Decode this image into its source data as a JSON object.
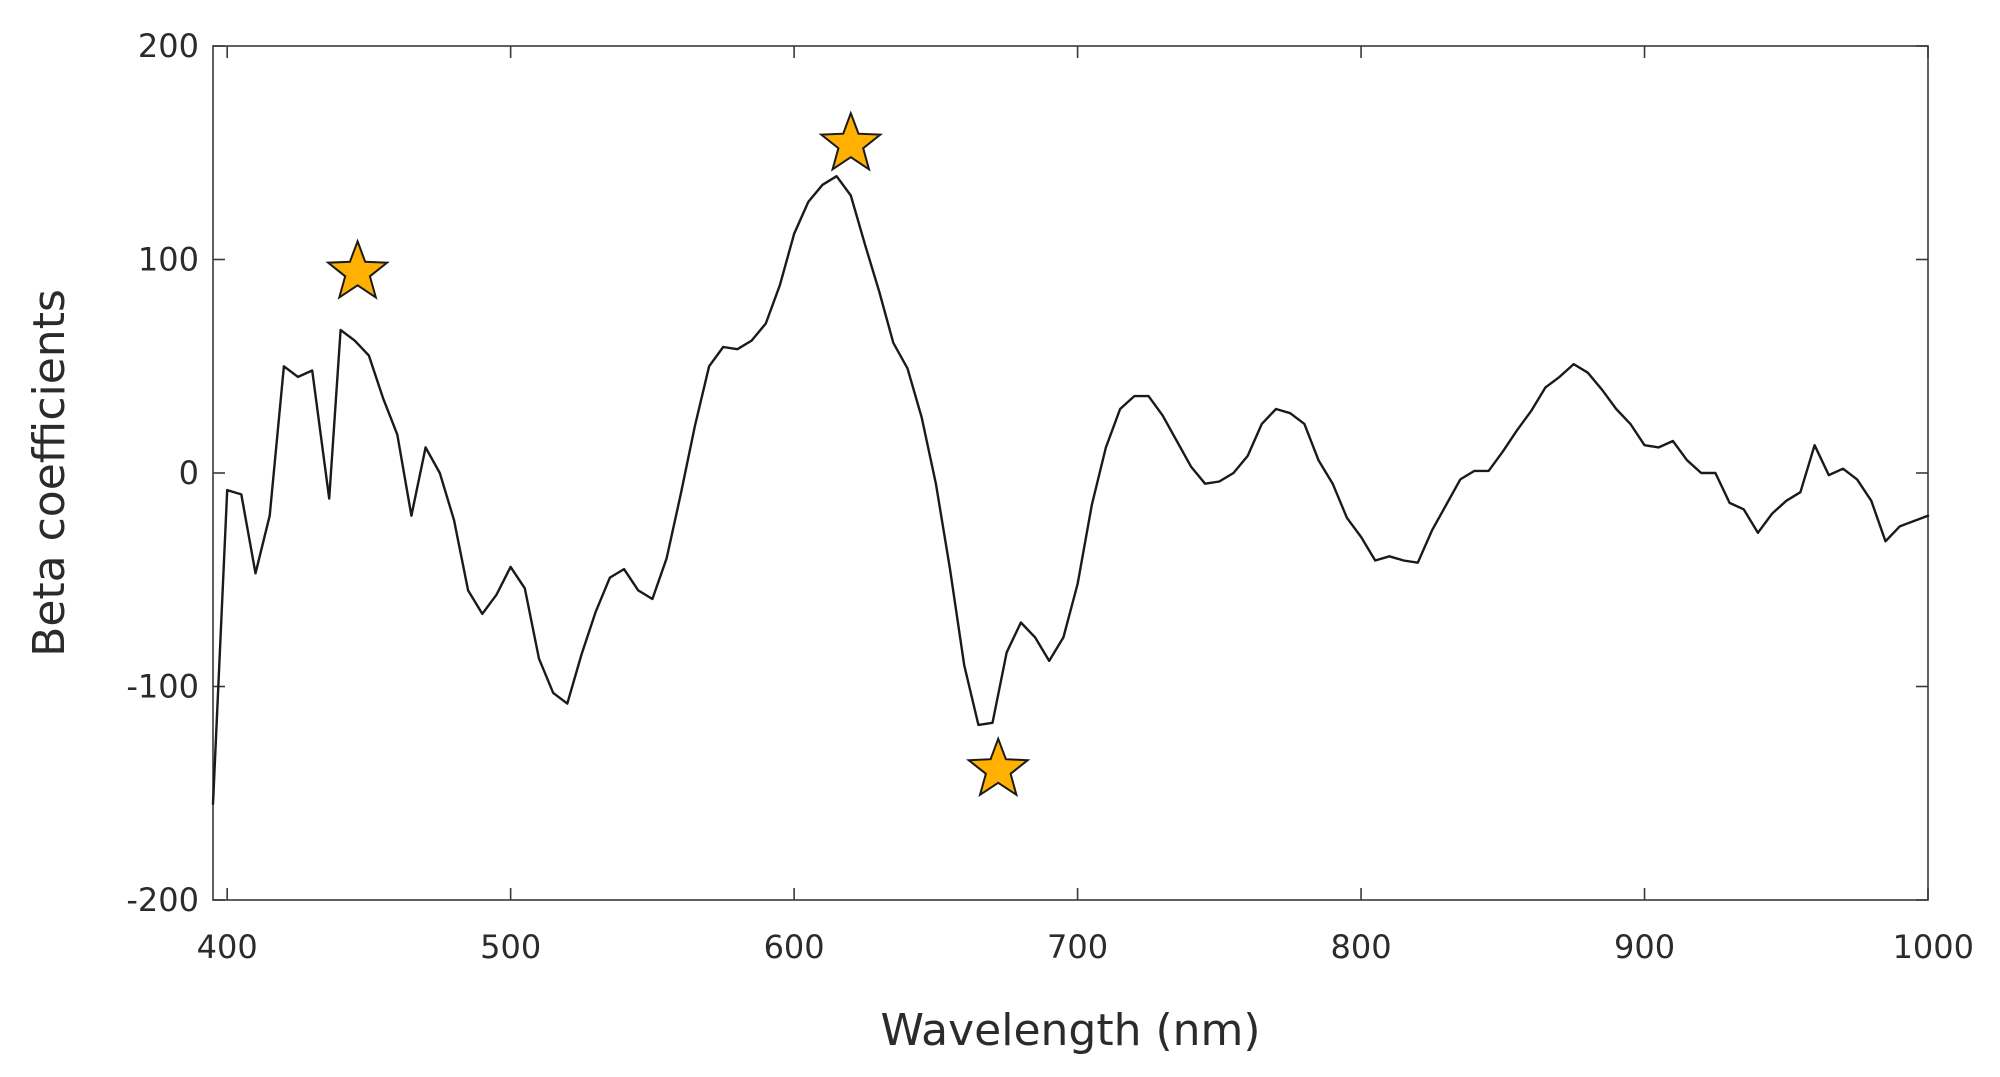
{
  "chart_data": {
    "type": "line",
    "title": "",
    "xlabel": "Wavelength (nm)",
    "ylabel": "Beta coefficients",
    "xlim": [
      395,
      1000
    ],
    "ylim": [
      -200,
      200
    ],
    "xticks": [
      400,
      500,
      600,
      700,
      800,
      900,
      1000
    ],
    "yticks": [
      -200,
      -100,
      0,
      100,
      200
    ],
    "grid": false,
    "line_color": "#1a1a1a",
    "marker_color": "#FFB000",
    "series": [
      {
        "values": [
          [
            395,
            -155
          ],
          [
            400,
            -8
          ],
          [
            405,
            -10
          ],
          [
            410,
            -47
          ],
          [
            415,
            -20
          ],
          [
            420,
            50
          ],
          [
            425,
            45
          ],
          [
            430,
            48
          ],
          [
            436,
            -12
          ],
          [
            440,
            67
          ],
          [
            445,
            62
          ],
          [
            450,
            55
          ],
          [
            455,
            35
          ],
          [
            460,
            18
          ],
          [
            465,
            -20
          ],
          [
            470,
            12
          ],
          [
            475,
            0
          ],
          [
            480,
            -22
          ],
          [
            485,
            -55
          ],
          [
            490,
            -66
          ],
          [
            495,
            -57
          ],
          [
            500,
            -44
          ],
          [
            505,
            -54
          ],
          [
            510,
            -87
          ],
          [
            515,
            -103
          ],
          [
            520,
            -108
          ],
          [
            525,
            -85
          ],
          [
            530,
            -65
          ],
          [
            535,
            -49
          ],
          [
            540,
            -45
          ],
          [
            545,
            -55
          ],
          [
            550,
            -59
          ],
          [
            555,
            -40
          ],
          [
            560,
            -10
          ],
          [
            565,
            22
          ],
          [
            570,
            50
          ],
          [
            575,
            59
          ],
          [
            580,
            58
          ],
          [
            585,
            62
          ],
          [
            590,
            70
          ],
          [
            595,
            88
          ],
          [
            600,
            112
          ],
          [
            605,
            127
          ],
          [
            610,
            135
          ],
          [
            615,
            139
          ],
          [
            620,
            130
          ],
          [
            625,
            107
          ],
          [
            630,
            85
          ],
          [
            635,
            61
          ],
          [
            640,
            49
          ],
          [
            645,
            26
          ],
          [
            650,
            -5
          ],
          [
            655,
            -45
          ],
          [
            660,
            -90
          ],
          [
            665,
            -118
          ],
          [
            670,
            -117
          ],
          [
            675,
            -84
          ],
          [
            680,
            -70
          ],
          [
            685,
            -77
          ],
          [
            690,
            -88
          ],
          [
            695,
            -77
          ],
          [
            700,
            -52
          ],
          [
            705,
            -15
          ],
          [
            710,
            12
          ],
          [
            715,
            30
          ],
          [
            720,
            36
          ],
          [
            725,
            36
          ],
          [
            730,
            27
          ],
          [
            735,
            15
          ],
          [
            740,
            3
          ],
          [
            745,
            -5
          ],
          [
            750,
            -4
          ],
          [
            755,
            0
          ],
          [
            760,
            8
          ],
          [
            765,
            23
          ],
          [
            770,
            30
          ],
          [
            775,
            28
          ],
          [
            780,
            23
          ],
          [
            785,
            6
          ],
          [
            790,
            -5
          ],
          [
            795,
            -21
          ],
          [
            800,
            -30
          ],
          [
            805,
            -41
          ],
          [
            810,
            -39
          ],
          [
            815,
            -41
          ],
          [
            820,
            -42
          ],
          [
            825,
            -27
          ],
          [
            830,
            -15
          ],
          [
            835,
            -3
          ],
          [
            840,
            1
          ],
          [
            845,
            1
          ],
          [
            850,
            10
          ],
          [
            855,
            20
          ],
          [
            860,
            29
          ],
          [
            865,
            40
          ],
          [
            870,
            45
          ],
          [
            875,
            51
          ],
          [
            880,
            47
          ],
          [
            885,
            39
          ],
          [
            890,
            30
          ],
          [
            895,
            23
          ],
          [
            900,
            13
          ],
          [
            905,
            12
          ],
          [
            910,
            15
          ],
          [
            915,
            6
          ],
          [
            920,
            0
          ],
          [
            925,
            0
          ],
          [
            930,
            -14
          ],
          [
            935,
            -17
          ],
          [
            940,
            -28
          ],
          [
            945,
            -19
          ],
          [
            950,
            -13
          ],
          [
            955,
            -9
          ],
          [
            960,
            13
          ],
          [
            965,
            -1
          ],
          [
            970,
            2
          ],
          [
            975,
            -3
          ],
          [
            980,
            -13
          ],
          [
            985,
            -32
          ],
          [
            990,
            -25
          ],
          [
            1000,
            -20
          ]
        ]
      }
    ],
    "annotations": [
      {
        "type": "star",
        "x": 446,
        "y": 94
      },
      {
        "type": "star",
        "x": 620,
        "y": 154
      },
      {
        "type": "star",
        "x": 672,
        "y": -139
      }
    ]
  }
}
